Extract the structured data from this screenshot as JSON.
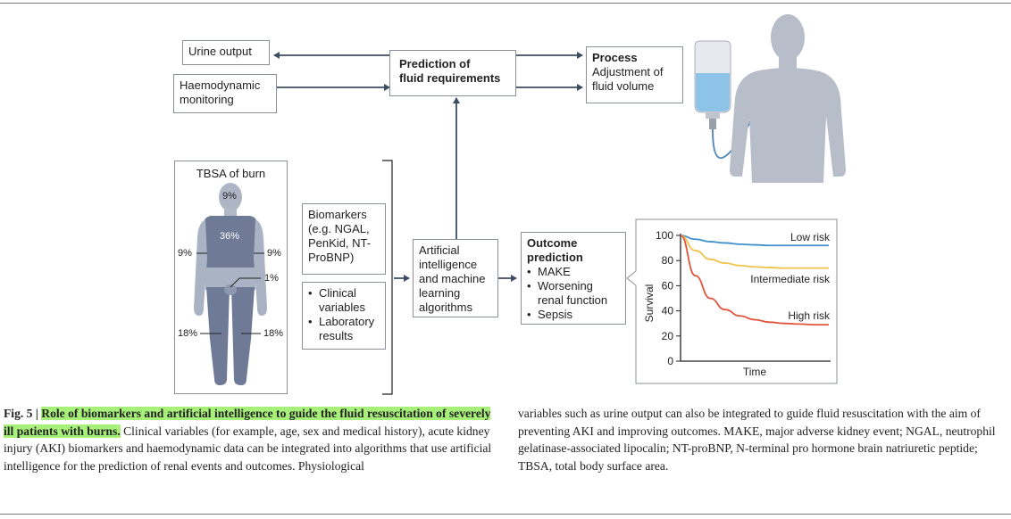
{
  "boxes": {
    "urine_output": "Urine output",
    "haemodynamic": "Haemodynamic monitoring",
    "prediction_line1": "Prediction of",
    "prediction_line2": "fluid requirements",
    "process_title": "Process",
    "process_body": "Adjustment of fluid volume",
    "tbsa_title": "TBSA of burn",
    "biomarkers": "Biomarkers (e.g. NGAL, PenKid, NT-ProBNP)",
    "clinical_items": [
      "Clinical variables",
      "Laboratory results"
    ],
    "ai": "Artificial intelligence and machine learning algorithms",
    "outcome_title": "Outcome prediction",
    "outcome_items": [
      "MAKE",
      "Worsening renal function",
      "Sepsis"
    ]
  },
  "tbsa": {
    "head": "9%",
    "trunk": "36%",
    "left_arm": "9%",
    "right_arm": "9%",
    "genital": "1%",
    "left_leg": "18%",
    "right_leg": "18%"
  },
  "chart_data": {
    "type": "line",
    "xlabel": "Time",
    "ylabel": "Survival",
    "ylim": [
      0,
      100
    ],
    "yticks": [
      "0",
      "20",
      "40",
      "60",
      "80",
      "100"
    ],
    "x": [
      0,
      1,
      2,
      3,
      4,
      5,
      6,
      7,
      8,
      9,
      10
    ],
    "series": [
      {
        "name": "Low risk",
        "color": "#3f8fcb",
        "values": [
          100,
          97,
          95,
          94,
          93,
          92.5,
          92,
          92,
          92,
          92,
          92
        ]
      },
      {
        "name": "Intermediate risk",
        "color": "#f0c24a",
        "values": [
          100,
          88,
          81,
          78,
          76,
          75,
          74.5,
          74,
          74,
          74,
          74
        ]
      },
      {
        "name": "High risk",
        "color": "#e0553c",
        "values": [
          100,
          68,
          50,
          41,
          36,
          33,
          31,
          30,
          29.5,
          29,
          29
        ]
      }
    ]
  },
  "caption": {
    "fig_label": "Fig. 5 |",
    "title": "Role of biomarkers and artificial intelligence to guide the fluid resuscitation of severely ill patients with burns.",
    "left_text": "Clinical variables (for example, age, sex and medical history), acute kidney injury (AKI) biomarkers and haemodynamic data can be integrated into algorithms that use artificial intelligence for the prediction of renal events and outcomes. Physiological",
    "right_text": "variables such as urine output can also be integrated to guide fluid resuscitation with the aim of preventing AKI and improving outcomes. MAKE, major adverse kidney event; NGAL, neutrophil gelatinase-associated lipocalin; NT-proBNP, N-terminal pro hormone brain natriuretic peptide; TBSA, total body surface area."
  }
}
